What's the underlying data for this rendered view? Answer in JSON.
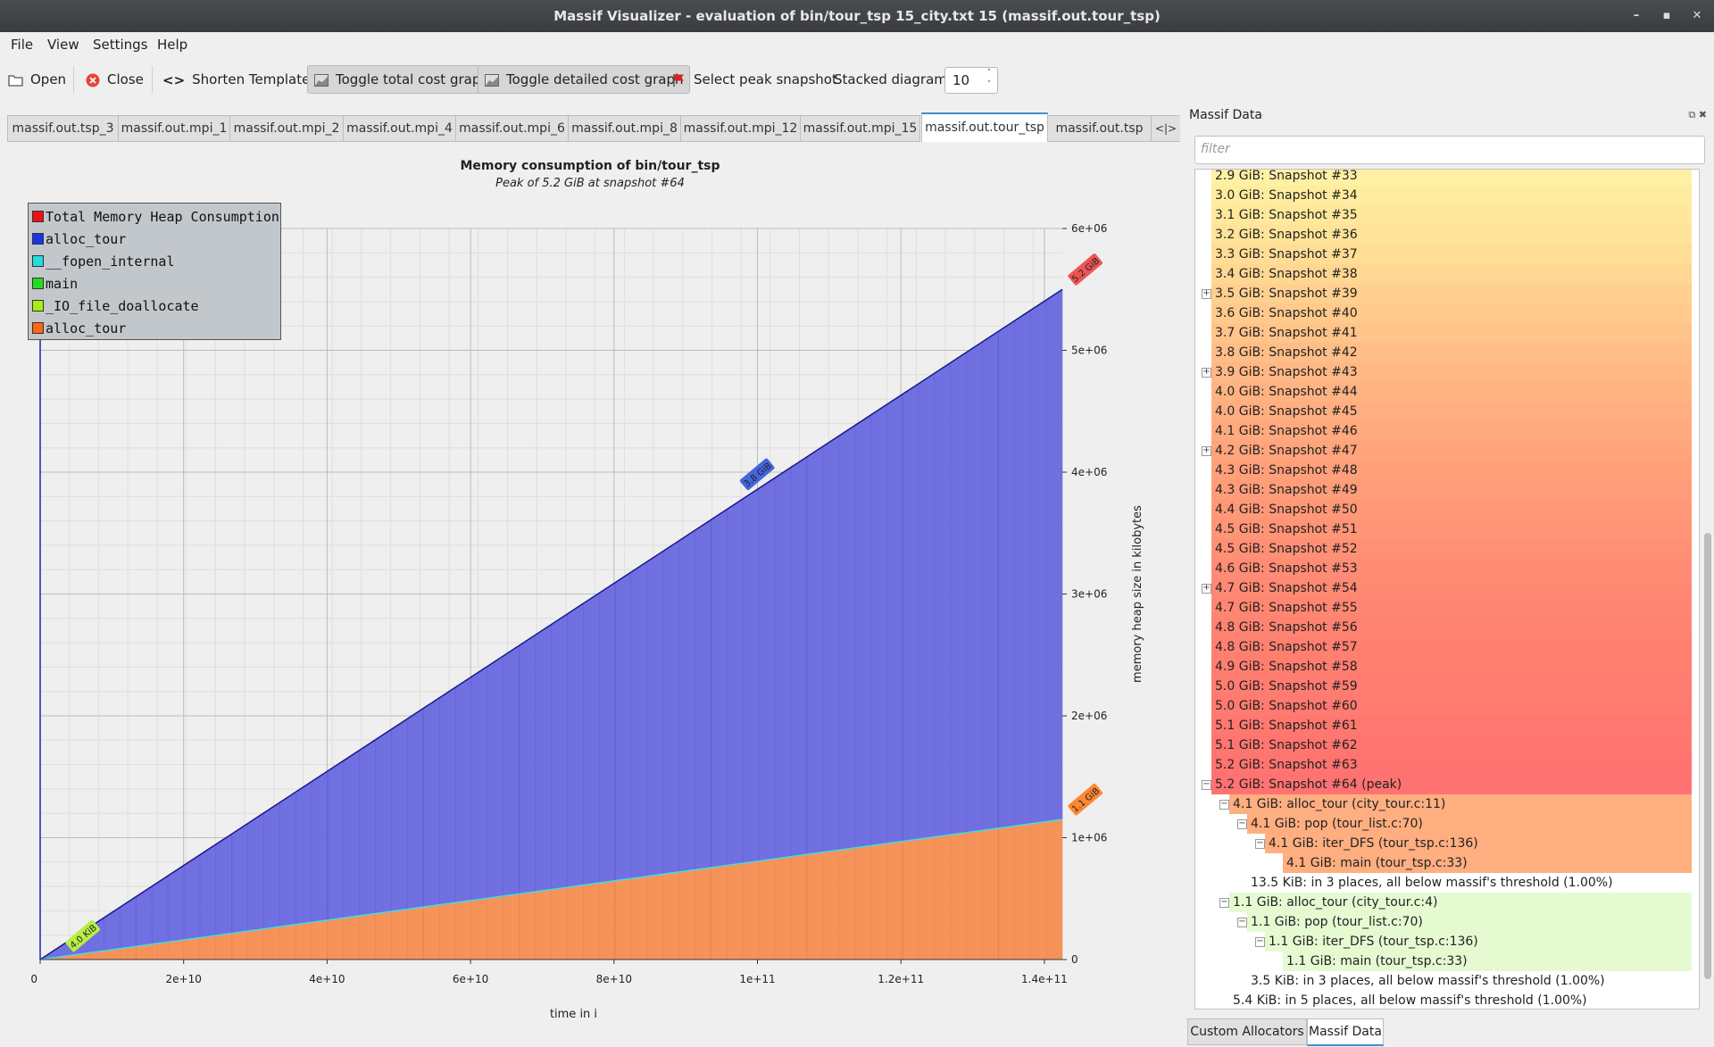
{
  "window": {
    "title": "Massif Visualizer - evaluation of bin/tour_tsp 15_city.txt 15 (massif.out.tour_tsp)",
    "minimize": "–",
    "maximize": "▪",
    "close": "✕"
  },
  "menu": {
    "file": "File",
    "view": "View",
    "settings": "Settings",
    "help": "Help"
  },
  "toolbar": {
    "open": "Open",
    "close": "Close",
    "shorten_icon": "<>",
    "shorten": "Shorten Templates",
    "toggle_total": "Toggle total cost graph",
    "toggle_detailed": "Toggle detailed cost graph",
    "select_peak": "Select peak snapshot",
    "stacked_label": "Stacked diagrams:",
    "stacked_value": "10"
  },
  "tabs": [
    {
      "label": "massif.out.tsp_3",
      "active": false
    },
    {
      "label": "massif.out.mpi_1",
      "active": false
    },
    {
      "label": "massif.out.mpi_2",
      "active": false
    },
    {
      "label": "massif.out.mpi_4",
      "active": false
    },
    {
      "label": "massif.out.mpi_6",
      "active": false
    },
    {
      "label": "massif.out.mpi_8",
      "active": false
    },
    {
      "label": "massif.out.mpi_12",
      "active": false
    },
    {
      "label": "massif.out.mpi_15",
      "active": false
    },
    {
      "label": "massif.out.tour_tsp",
      "active": true
    },
    {
      "label": "massif.out.tsp",
      "active": false
    }
  ],
  "tab_scroll": "<|>",
  "chart_data": {
    "type": "area",
    "title": "Memory consumption of bin/tour_tsp",
    "subtitle": "Peak of 5.2 GiB at snapshot #64",
    "xlabel": "time in i",
    "ylabel": "memory heap size in kilobytes",
    "x_ticks": [
      "0",
      "2e+10",
      "4e+10",
      "6e+10",
      "8e+10",
      "1e+11",
      "1.2e+11",
      "1.4e+11"
    ],
    "y_ticks": [
      "0",
      "1e+06",
      "2e+06",
      "3e+06",
      "4e+06",
      "5e+06",
      "6e+06"
    ],
    "xlim": [
      0,
      142500000000
    ],
    "ylim": [
      0,
      6000000
    ],
    "grid": true,
    "legend_position": "top-left",
    "legend": [
      {
        "name": "Total Memory Heap Consumption",
        "color": "#ee1111"
      },
      {
        "name": "alloc_tour",
        "color": "#1a33e6"
      },
      {
        "name": "__fopen_internal",
        "color": "#22dddd"
      },
      {
        "name": "main",
        "color": "#22dd22"
      },
      {
        "name": "_IO_file_doallocate",
        "color": "#aaee11"
      },
      {
        "name": "alloc_tour",
        "color": "#ff6611"
      }
    ],
    "series": [
      {
        "name": "alloc_tour",
        "color": "#6b6be0",
        "x": [
          0,
          142500000000
        ],
        "values": [
          0,
          4350000
        ]
      },
      {
        "name": "alloc_tour",
        "color": "#f59055",
        "x": [
          0,
          142500000000
        ],
        "values": [
          0,
          1150000
        ]
      },
      {
        "name": "Total Memory Heap Consumption",
        "color": "#1a1a8e",
        "x": [
          0,
          142500000000
        ],
        "values": [
          0,
          5500000
        ]
      }
    ],
    "annotations": [
      {
        "text": "4.0 KiB",
        "x": 2500000000,
        "y": 0,
        "color": "#b8ee44"
      },
      {
        "text": "3.8 GiB",
        "x": 100000000000,
        "y": 3980000,
        "color": "#4466dd"
      },
      {
        "text": "5.2 GiB",
        "x": 142500000000,
        "y": 5500000,
        "color": "#ee5555"
      },
      {
        "text": "1.1 GiB",
        "x": 142500000000,
        "y": 1150000,
        "color": "#ff8833"
      }
    ]
  },
  "panel": {
    "title": "Massif Data",
    "filter_placeholder": "filter",
    "bottom_tabs": [
      "Custom Allocators",
      "Massif Data"
    ],
    "rows": [
      {
        "text": "2.9 GiB: Snapshot #33",
        "depth": 0,
        "exp": "",
        "color": "#fff0a4"
      },
      {
        "text": "3.0 GiB: Snapshot #34",
        "depth": 0,
        "exp": "",
        "color": "#ffed9f"
      },
      {
        "text": "3.1 GiB: Snapshot #35",
        "depth": 0,
        "exp": "",
        "color": "#ffe89b"
      },
      {
        "text": "3.2 GiB: Snapshot #36",
        "depth": 0,
        "exp": "",
        "color": "#ffe398"
      },
      {
        "text": "3.3 GiB: Snapshot #37",
        "depth": 0,
        "exp": "",
        "color": "#ffdd95"
      },
      {
        "text": "3.4 GiB: Snapshot #38",
        "depth": 0,
        "exp": "",
        "color": "#ffd792"
      },
      {
        "text": "3.5 GiB: Snapshot #39",
        "depth": 0,
        "exp": "+",
        "color": "#ffd08f"
      },
      {
        "text": "3.6 GiB: Snapshot #40",
        "depth": 0,
        "exp": "",
        "color": "#ffca8c"
      },
      {
        "text": "3.7 GiB: Snapshot #41",
        "depth": 0,
        "exp": "",
        "color": "#ffc489"
      },
      {
        "text": "3.8 GiB: Snapshot #42",
        "depth": 0,
        "exp": "",
        "color": "#ffbe87"
      },
      {
        "text": "3.9 GiB: Snapshot #43",
        "depth": 0,
        "exp": "+",
        "color": "#ffb885"
      },
      {
        "text": "4.0 GiB: Snapshot #44",
        "depth": 0,
        "exp": "",
        "color": "#ffb383"
      },
      {
        "text": "4.0 GiB: Snapshot #45",
        "depth": 0,
        "exp": "",
        "color": "#ffae81"
      },
      {
        "text": "4.1 GiB: Snapshot #46",
        "depth": 0,
        "exp": "",
        "color": "#ffa97f"
      },
      {
        "text": "4.2 GiB: Snapshot #47",
        "depth": 0,
        "exp": "+",
        "color": "#ffa47d"
      },
      {
        "text": "4.3 GiB: Snapshot #48",
        "depth": 0,
        "exp": "",
        "color": "#ffa07b"
      },
      {
        "text": "4.3 GiB: Snapshot #49",
        "depth": 0,
        "exp": "",
        "color": "#ff9c79"
      },
      {
        "text": "4.4 GiB: Snapshot #50",
        "depth": 0,
        "exp": "",
        "color": "#ff9877"
      },
      {
        "text": "4.5 GiB: Snapshot #51",
        "depth": 0,
        "exp": "",
        "color": "#ff9476"
      },
      {
        "text": "4.5 GiB: Snapshot #52",
        "depth": 0,
        "exp": "",
        "color": "#ff9075"
      },
      {
        "text": "4.6 GiB: Snapshot #53",
        "depth": 0,
        "exp": "",
        "color": "#ff8c74"
      },
      {
        "text": "4.7 GiB: Snapshot #54",
        "depth": 0,
        "exp": "+",
        "color": "#ff8973"
      },
      {
        "text": "4.7 GiB: Snapshot #55",
        "depth": 0,
        "exp": "",
        "color": "#ff8672"
      },
      {
        "text": "4.8 GiB: Snapshot #56",
        "depth": 0,
        "exp": "",
        "color": "#ff8371"
      },
      {
        "text": "4.8 GiB: Snapshot #57",
        "depth": 0,
        "exp": "",
        "color": "#ff8070"
      },
      {
        "text": "4.9 GiB: Snapshot #58",
        "depth": 0,
        "exp": "",
        "color": "#ff7e70"
      },
      {
        "text": "5.0 GiB: Snapshot #59",
        "depth": 0,
        "exp": "",
        "color": "#ff7c70"
      },
      {
        "text": "5.0 GiB: Snapshot #60",
        "depth": 0,
        "exp": "",
        "color": "#ff7a70"
      },
      {
        "text": "5.1 GiB: Snapshot #61",
        "depth": 0,
        "exp": "",
        "color": "#ff7870"
      },
      {
        "text": "5.1 GiB: Snapshot #62",
        "depth": 0,
        "exp": "",
        "color": "#ff7670"
      },
      {
        "text": "5.2 GiB: Snapshot #63",
        "depth": 0,
        "exp": "",
        "color": "#ff7470"
      },
      {
        "text": "5.2 GiB: Snapshot #64 (peak)",
        "depth": 0,
        "exp": "−",
        "color": "#ff7272"
      },
      {
        "text": "4.1 GiB: alloc_tour (city_tour.c:11)",
        "depth": 1,
        "exp": "−",
        "color": "#ffae80"
      },
      {
        "text": "4.1 GiB: pop (tour_list.c:70)",
        "depth": 2,
        "exp": "−",
        "color": "#ffae80"
      },
      {
        "text": "4.1 GiB: iter_DFS (tour_tsp.c:136)",
        "depth": 3,
        "exp": "−",
        "color": "#ffae80"
      },
      {
        "text": "4.1 GiB: main (tour_tsp.c:33)",
        "depth": 4,
        "exp": "",
        "color": "#ffae80"
      },
      {
        "text": "13.5 KiB: in 3 places, all below massif's threshold (1.00%)",
        "depth": 2,
        "exp": "",
        "color": ""
      },
      {
        "text": "1.1 GiB: alloc_tour (city_tour.c:4)",
        "depth": 1,
        "exp": "−",
        "color": "#e6fad2"
      },
      {
        "text": "1.1 GiB: pop (tour_list.c:70)",
        "depth": 2,
        "exp": "−",
        "color": "#e6fad2"
      },
      {
        "text": "1.1 GiB: iter_DFS (tour_tsp.c:136)",
        "depth": 3,
        "exp": "−",
        "color": "#e6fad2"
      },
      {
        "text": "1.1 GiB: main (tour_tsp.c:33)",
        "depth": 4,
        "exp": "",
        "color": "#e6fad2"
      },
      {
        "text": "3.5 KiB: in 3 places, all below massif's threshold (1.00%)",
        "depth": 2,
        "exp": "",
        "color": ""
      },
      {
        "text": "5.4 KiB: in 5 places, all below massif's threshold (1.00%)",
        "depth": 1,
        "exp": "",
        "color": ""
      }
    ]
  }
}
